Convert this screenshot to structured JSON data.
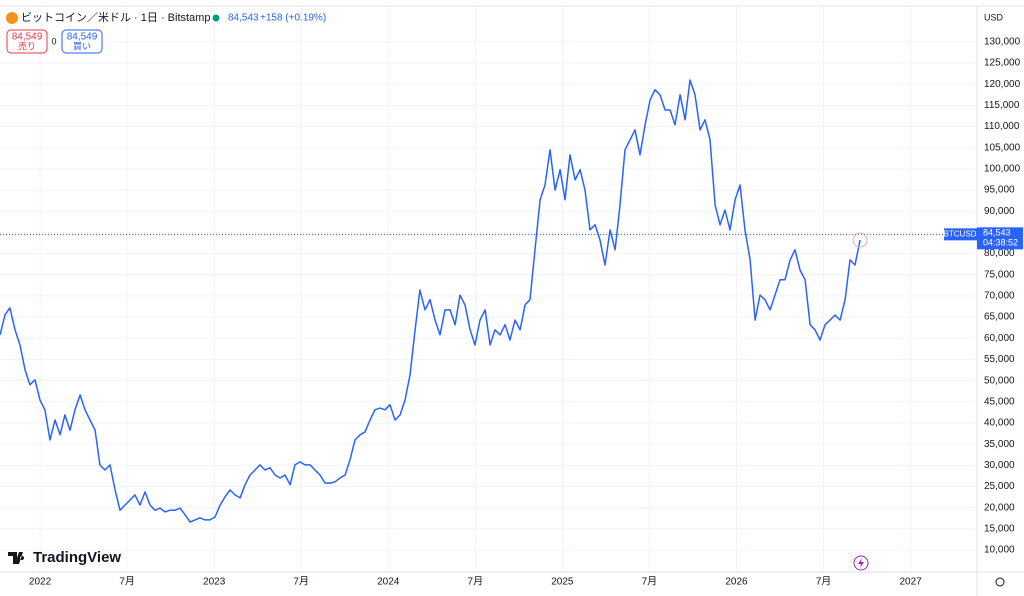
{
  "chart_data": {
    "type": "line",
    "title": "ビットコイン／米ドル · 1日 · Bitstamp",
    "change": "+158 (+0.19%)",
    "sell": {
      "price": "84,549",
      "label": "売り"
    },
    "spread": "0",
    "buy": {
      "price": "84,549",
      "label": "買い"
    },
    "currency": "USD",
    "symbol": "BTCUSD",
    "countdown": "04:38:52",
    "last_price": {
      "value": 84543,
      "label": "84,543"
    },
    "brand": "TradingView",
    "x": [
      2021.77,
      2021.799,
      2021.827,
      2021.856,
      2021.885,
      2021.914,
      2021.942,
      2021.971,
      2022.0,
      2022.028,
      2022.057,
      2022.086,
      2022.115,
      2022.143,
      2022.172,
      2022.201,
      2022.23,
      2022.258,
      2022.287,
      2022.316,
      2022.344,
      2022.373,
      2022.402,
      2022.431,
      2022.459,
      2022.488,
      2022.517,
      2022.545,
      2022.574,
      2022.603,
      2022.632,
      2022.66,
      2022.689,
      2022.718,
      2022.746,
      2022.775,
      2022.804,
      2022.833,
      2022.861,
      2022.89,
      2022.919,
      2022.947,
      2022.976,
      2023.005,
      2023.034,
      2023.062,
      2023.091,
      2023.12,
      2023.149,
      2023.177,
      2023.206,
      2023.235,
      2023.263,
      2023.292,
      2023.321,
      2023.35,
      2023.378,
      2023.407,
      2023.436,
      2023.464,
      2023.493,
      2023.522,
      2023.551,
      2023.579,
      2023.608,
      2023.637,
      2023.666,
      2023.694,
      2023.723,
      2023.752,
      2023.78,
      2023.809,
      2023.838,
      2023.867,
      2023.895,
      2023.924,
      2023.953,
      2023.981,
      2024.01,
      2024.039,
      2024.068,
      2024.096,
      2024.125,
      2024.154,
      2024.182,
      2024.211,
      2024.24,
      2024.269,
      2024.297,
      2024.326,
      2024.355,
      2024.384,
      2024.412,
      2024.441,
      2024.47,
      2024.498,
      2024.527,
      2024.556,
      2024.585,
      2024.613,
      2024.642,
      2024.671,
      2024.699,
      2024.728,
      2024.757,
      2024.786,
      2024.814,
      2024.843,
      2024.872,
      2024.9,
      2024.929,
      2024.958,
      2024.987,
      2025.015,
      2025.044,
      2025.073,
      2025.102,
      2025.13,
      2025.159,
      2025.188,
      2025.216,
      2025.245,
      2025.274,
      2025.303,
      2025.331,
      2025.36,
      2025.389,
      2025.417,
      2025.446,
      2025.475,
      2025.504,
      2025.532,
      2025.561,
      2025.59,
      2025.619,
      2025.647,
      2025.676,
      2025.705,
      2025.733,
      2025.762,
      2025.791,
      2025.819,
      2025.848,
      2025.877,
      2025.906,
      2025.934,
      2025.963,
      2025.992,
      2026.02,
      2026.049,
      2026.078,
      2026.107,
      2026.135,
      2026.164,
      2026.193,
      2026.221,
      2026.25,
      2026.279,
      2026.308,
      2026.336,
      2026.365,
      2026.394,
      2026.423,
      2026.451,
      2026.48,
      2026.509,
      2026.537,
      2026.566,
      2026.595,
      2026.624,
      2026.652,
      2026.681,
      2026.71
    ],
    "series": [
      {
        "name": "BTCUSD",
        "color": "#2962ff",
        "values": [
          60800,
          65500,
          67200,
          62000,
          58400,
          52500,
          49000,
          50200,
          45400,
          43100,
          36000,
          40700,
          37200,
          41900,
          38300,
          43100,
          46600,
          43100,
          40700,
          38300,
          30100,
          28900,
          30100,
          24200,
          19400,
          20600,
          21800,
          23000,
          20600,
          23700,
          20600,
          19400,
          19900,
          19000,
          19400,
          19400,
          19900,
          18300,
          16600,
          17100,
          17600,
          17100,
          17100,
          17800,
          20600,
          22500,
          24200,
          23000,
          22300,
          25400,
          27700,
          28900,
          30100,
          28900,
          29400,
          27700,
          27000,
          27700,
          25400,
          30100,
          30800,
          30100,
          30100,
          28900,
          27700,
          25800,
          25800,
          26100,
          27000,
          27700,
          31300,
          36000,
          37200,
          37900,
          40700,
          43100,
          43500,
          43100,
          44300,
          40700,
          41900,
          45400,
          51300,
          62000,
          71400,
          66700,
          69100,
          64300,
          60800,
          66700,
          66700,
          63200,
          70200,
          67900,
          62000,
          58400,
          64300,
          66700,
          58400,
          62000,
          60800,
          63200,
          59600,
          64300,
          62000,
          67900,
          69100,
          80900,
          92700,
          96200,
          104500,
          95000,
          99800,
          92700,
          103300,
          97400,
          99800,
          95000,
          85600,
          86800,
          83200,
          77300,
          85600,
          80900,
          91500,
          104500,
          106900,
          109200,
          103300,
          110400,
          116300,
          118700,
          117500,
          113900,
          113900,
          110400,
          117500,
          111600,
          121000,
          117500,
          109200,
          111600,
          106900,
          91500,
          86800,
          90300,
          85600,
          92700,
          96200,
          85600,
          78500,
          64300,
          70200,
          69100,
          66700,
          70200,
          73800,
          73800,
          78500,
          80900,
          76100,
          73800,
          63200,
          62000,
          59600,
          63200,
          64300,
          65500,
          64300,
          69100,
          78500,
          77300,
          83200
        ]
      }
    ],
    "xlim": [
      2021.77,
      2027.37
    ],
    "xticks": [
      2022,
      {
        "value": 2022.5,
        "label": "7月"
      },
      2023,
      {
        "value": 2023.5,
        "label": "7月"
      },
      2024,
      {
        "value": 2024.5,
        "label": "7月"
      },
      2025,
      {
        "value": 2025.5,
        "label": "7月"
      },
      2026,
      {
        "value": 2026.5,
        "label": "7月"
      },
      2027
    ],
    "ylim": [
      4800,
      138000
    ],
    "yticks": [
      {
        "value": 10000,
        "label": "10,000"
      },
      {
        "value": 15000,
        "label": "15,000"
      },
      {
        "value": 20000,
        "label": "20,000"
      },
      {
        "value": 25000,
        "label": "25,000"
      },
      {
        "value": 30000,
        "label": "30,000"
      },
      {
        "value": 35000,
        "label": "35,000"
      },
      {
        "value": 40000,
        "label": "40,000"
      },
      {
        "value": 45000,
        "label": "45,000"
      },
      {
        "value": 50000,
        "label": "50,000"
      },
      {
        "value": 55000,
        "label": "55,000"
      },
      {
        "value": 60000,
        "label": "60,000"
      },
      {
        "value": 65000,
        "label": "65,000"
      },
      {
        "value": 70000,
        "label": "70,000"
      },
      {
        "value": 75000,
        "label": "75,000"
      },
      {
        "value": 80000,
        "label": "80,000"
      },
      {
        "value": 85000,
        "label": "85,000"
      },
      {
        "value": 90000,
        "label": "90,000"
      },
      {
        "value": 95000,
        "label": "95,000"
      },
      {
        "value": 100000,
        "label": "100,000"
      },
      {
        "value": 105000,
        "label": "105,000"
      },
      {
        "value": 110000,
        "label": "110,000"
      },
      {
        "value": 115000,
        "label": "115,000"
      },
      {
        "value": 120000,
        "label": "120,000"
      },
      {
        "value": 125000,
        "label": "125,000"
      },
      {
        "value": 130000,
        "label": "130,000"
      }
    ],
    "grid": true
  }
}
